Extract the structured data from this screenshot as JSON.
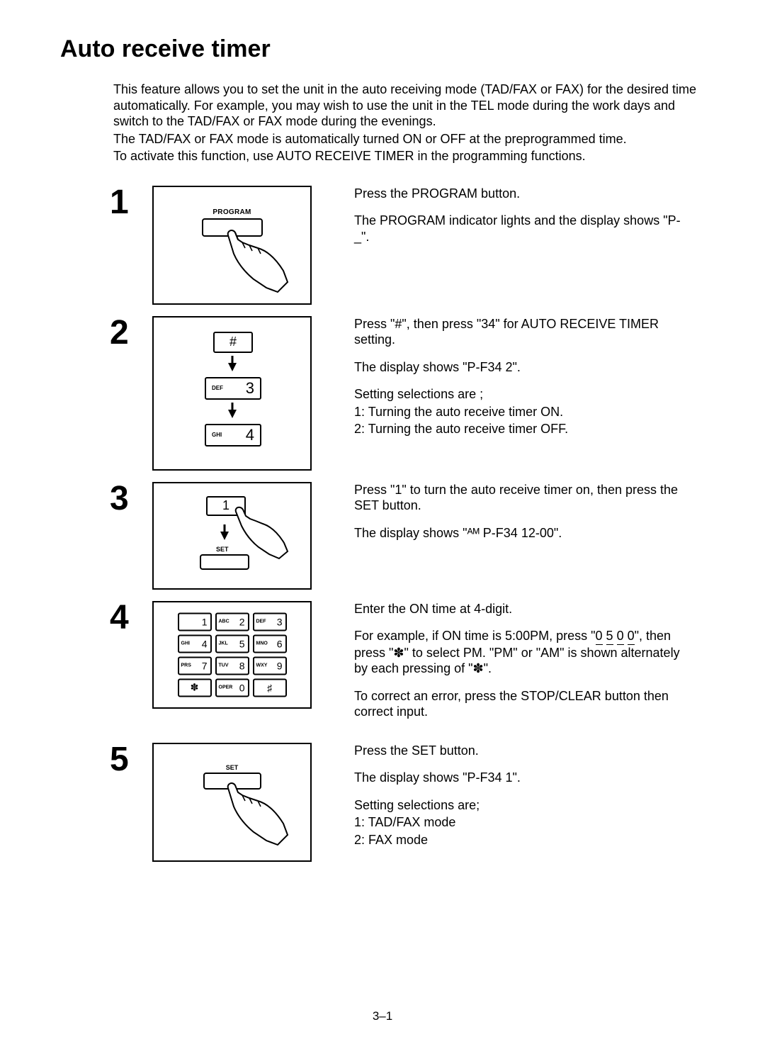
{
  "title": "Auto receive timer",
  "intro": {
    "p1": "This feature allows you to set the unit in the auto receiving mode (TAD/FAX or FAX) for the desired time automatically. For example, you may wish to use the unit in the TEL mode during the work days and switch to the TAD/FAX or FAX mode during the evenings.",
    "p2": "The TAD/FAX or FAX mode is automatically turned ON or OFF at the preprogrammed time.",
    "p3": "To activate this function, use AUTO RECEIVE TIMER in the programming functions."
  },
  "steps": [
    {
      "num": "1",
      "paras": [
        "Press the PROGRAM button.",
        "The PROGRAM indicator lights and the display shows \"P-_\"."
      ],
      "illus": {
        "type": "program-hand",
        "btn_label": "PROGRAM"
      }
    },
    {
      "num": "2",
      "paras": [
        "Press \"#\", then press \"34\" for AUTO RECEIVE TIMER setting.",
        "The display shows \"P-F34   2\".",
        "Setting selections are ;",
        "1:  Turning the auto receive timer ON.",
        "2:  Turning the auto receive timer OFF."
      ],
      "illus": {
        "type": "three-keys",
        "keys": [
          {
            "small": "",
            "big": "#"
          },
          {
            "small": "DEF",
            "big": "3"
          },
          {
            "small": "GHI",
            "big": "4"
          }
        ]
      }
    },
    {
      "num": "3",
      "paras": [
        "Press \"1\" to turn the auto receive timer on, then press the SET button.",
        "The display shows \"ᴬᴹ P-F34 12-00\"."
      ],
      "illus": {
        "type": "one-then-set",
        "key1": "1",
        "set_label": "SET"
      }
    },
    {
      "num": "4",
      "paras": [
        "Enter the ON time at 4-digit.",
        "For example, if ON time is 5:00PM, press \"<u>0</u> <u>5</u> <u>0</u> <u>0</u>\", then press \"✽\" to select PM. \"PM\" or \"AM\" is shown alternately by each pressing of \"✽\".",
        "To correct an error, press the STOP/CLEAR button then correct input."
      ],
      "illus": {
        "type": "keypad",
        "keys": [
          {
            "small": "",
            "big": "1"
          },
          {
            "small": "ABC",
            "big": "2"
          },
          {
            "small": "DEF",
            "big": "3"
          },
          {
            "small": "GHI",
            "big": "4"
          },
          {
            "small": "JKL",
            "big": "5"
          },
          {
            "small": "MNO",
            "big": "6"
          },
          {
            "small": "PRS",
            "big": "7"
          },
          {
            "small": "TUV",
            "big": "8"
          },
          {
            "small": "WXY",
            "big": "9"
          },
          {
            "small": "",
            "big": "✽"
          },
          {
            "small": "OPER",
            "big": "0"
          },
          {
            "small": "",
            "big": "♯"
          }
        ]
      }
    },
    {
      "num": "5",
      "paras": [
        "Press the SET button.",
        "The display shows \"P-F34   1\".",
        "Setting selections are;",
        "1:  TAD/FAX mode",
        "2:  FAX mode"
      ],
      "illus": {
        "type": "set-hand",
        "set_label": "SET"
      }
    }
  ],
  "page_number": "3–1",
  "colors": {
    "ink": "#000000",
    "paper": "#ffffff"
  },
  "keypad_cell": {
    "w": 48,
    "h": 26,
    "gap": 5
  }
}
